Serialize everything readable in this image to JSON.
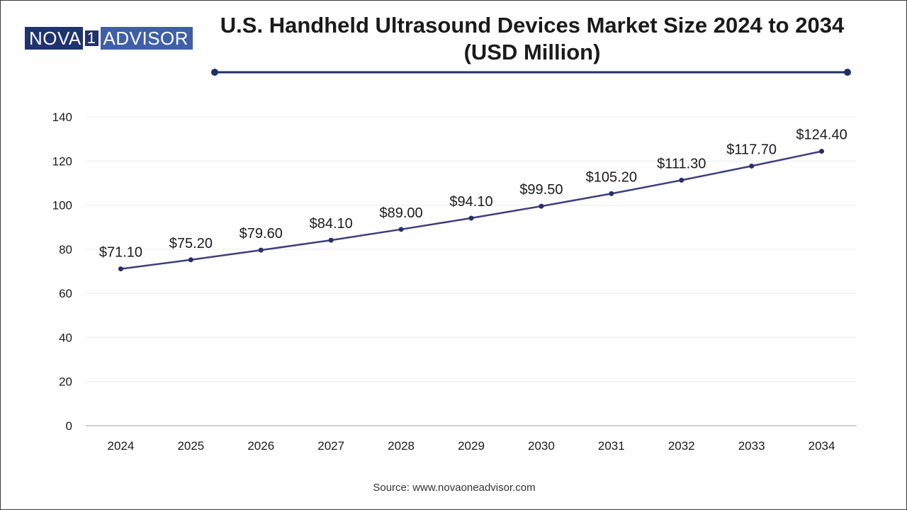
{
  "logo": {
    "part1": "NOVA",
    "part2": "1",
    "part3": "ADVISOR"
  },
  "title_line1": "U.S. Handheld Ultrasound Devices Market Size 2024 to 2034",
  "title_line2": "(USD Million)",
  "source": "Source: www.novaoneadvisor.com",
  "colors": {
    "line": "#3d3f7c",
    "marker": "#2a2d66",
    "rule": "#1f2f66",
    "logo_dark": "#1f3370",
    "logo_light": "#3f5fa8"
  },
  "chart_data": {
    "type": "line",
    "title": "U.S. Handheld Ultrasound Devices Market Size 2024 to 2034 (USD Million)",
    "xlabel": "",
    "ylabel": "",
    "categories": [
      "2024",
      "2025",
      "2026",
      "2027",
      "2028",
      "2029",
      "2030",
      "2031",
      "2032",
      "2033",
      "2034"
    ],
    "values": [
      71.1,
      75.2,
      79.6,
      84.1,
      89.0,
      94.1,
      99.5,
      105.2,
      111.3,
      117.7,
      124.4
    ],
    "labels": [
      "$71.10",
      "$75.20",
      "$79.60",
      "$84.10",
      "$89.00",
      "$94.10",
      "$99.50",
      "$105.20",
      "$111.30",
      "$117.70",
      "$124.40"
    ],
    "y_ticks": [
      "0",
      "20",
      "40",
      "60",
      "80",
      "100",
      "120",
      "140"
    ],
    "ylim": [
      0,
      140
    ],
    "grid": true,
    "legend": "none"
  }
}
